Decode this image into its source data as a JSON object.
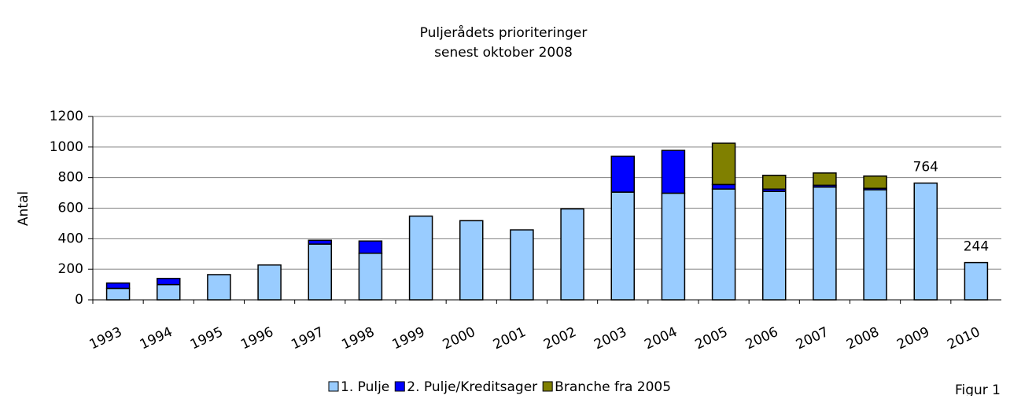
{
  "chart_data": {
    "type": "stacked_bar",
    "title": "Puljerådets prioriteringer",
    "subtitle": "senest oktober 2008",
    "y_label": "Antal",
    "footnote": "Figur 1",
    "categories": [
      "1993",
      "1994",
      "1995",
      "1996",
      "1997",
      "1998",
      "1999",
      "2000",
      "2001",
      "2002",
      "2003",
      "2004",
      "2005",
      "2006",
      "2007",
      "2008",
      "2009",
      "2010"
    ],
    "series": [
      {
        "name": "1. Pulje",
        "color": "#99ccff",
        "values": [
          75,
          100,
          165,
          228,
          365,
          305,
          548,
          518,
          458,
          595,
          705,
          698,
          725,
          710,
          738,
          720,
          764,
          244
        ],
        "value_labels": [
          null,
          null,
          null,
          null,
          null,
          null,
          null,
          null,
          null,
          null,
          null,
          null,
          null,
          null,
          null,
          null,
          "764",
          "244"
        ]
      },
      {
        "name": "2. Pulje/Kreditsager",
        "color": "#0000ff",
        "values": [
          35,
          40,
          0,
          0,
          25,
          80,
          0,
          0,
          0,
          0,
          235,
          280,
          30,
          15,
          12,
          10,
          0,
          0
        ]
      },
      {
        "name": "Branche fra 2005",
        "color": "#808000",
        "values": [
          0,
          0,
          0,
          0,
          0,
          0,
          0,
          0,
          0,
          0,
          0,
          0,
          270,
          90,
          80,
          80,
          0,
          0
        ]
      }
    ],
    "ylim": [
      0,
      1200
    ],
    "yticks": [
      0,
      200,
      400,
      600,
      800,
      1000,
      1200
    ],
    "grid": true,
    "legend": "bottom"
  }
}
